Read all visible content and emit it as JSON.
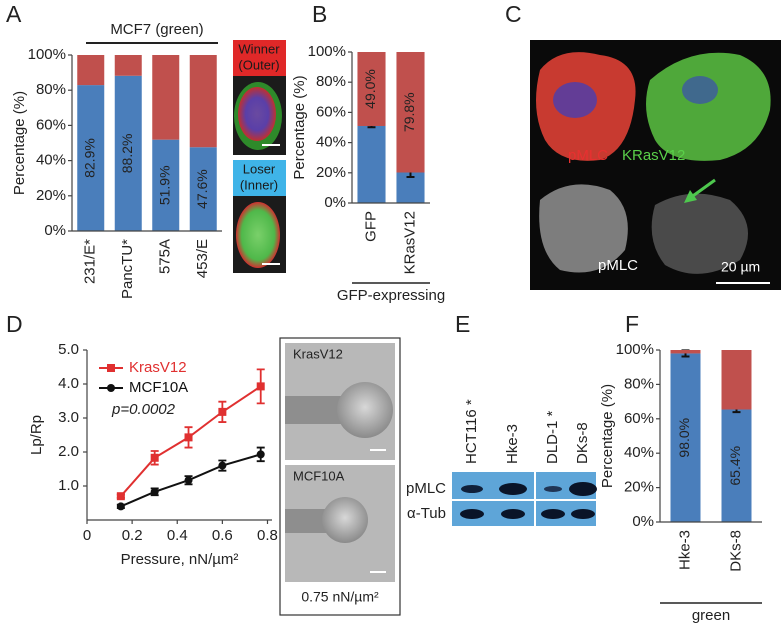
{
  "panel_labels": [
    "A",
    "B",
    "C",
    "D",
    "E",
    "F"
  ],
  "chart_data": [
    {
      "type": "bar",
      "stacked": true,
      "title": "MCF7 (green)",
      "ylabel": "Percentage (%)",
      "categories": [
        "231/E*",
        "PancTU*",
        "575A",
        "453/E"
      ],
      "series": [
        {
          "color": "#4a7ebb",
          "values": [
            82.9,
            88.2,
            51.9,
            47.6
          ],
          "value_labels": [
            "82.9%",
            "88.2%",
            "51.9%",
            "47.6%"
          ]
        },
        {
          "color": "#c0504d",
          "values": [
            17.1,
            11.8,
            48.1,
            52.4
          ]
        }
      ],
      "ylim": [
        0,
        100
      ],
      "yticks": [
        {
          "value": 0,
          "label": "0%"
        },
        {
          "value": 20,
          "label": "20%"
        },
        {
          "value": 40,
          "label": "40%"
        },
        {
          "value": 60,
          "label": "60%"
        },
        {
          "value": 80,
          "label": "80%"
        },
        {
          "value": 100,
          "label": "100%"
        }
      ]
    },
    {
      "type": "bar",
      "stacked": true,
      "ylabel": "Percentage (%)",
      "xlabel": "GFP-expressing",
      "categories": [
        "GFP",
        "KRasV12"
      ],
      "series": [
        {
          "color": "#4a7ebb",
          "values": [
            51.0,
            20.2
          ],
          "error": [
            0.8,
            3.0
          ]
        },
        {
          "color": "#c0504d",
          "values": [
            49.0,
            79.8
          ],
          "value_labels": [
            "49.0%",
            "79.8%"
          ]
        }
      ],
      "ylim": [
        0,
        100
      ],
      "yticks": [
        {
          "value": 0,
          "label": "0%"
        },
        {
          "value": 20,
          "label": "20%"
        },
        {
          "value": 40,
          "label": "40%"
        },
        {
          "value": 60,
          "label": "60%"
        },
        {
          "value": 80,
          "label": "80%"
        },
        {
          "value": 100,
          "label": "100%"
        }
      ]
    },
    {
      "type": "line",
      "xlabel": "Pressure, nN/µm²",
      "ylabel": "Lp/Rp",
      "annotation": "p=0.0002",
      "legend": "upper left",
      "x": [
        0.15,
        0.3,
        0.45,
        0.6,
        0.77
      ],
      "series": [
        {
          "name": "KrasV12",
          "color": "#e03030",
          "marker": "square",
          "values": [
            0.7,
            1.83,
            2.43,
            3.18,
            3.93
          ],
          "error": [
            0.05,
            0.2,
            0.3,
            0.3,
            0.5
          ]
        },
        {
          "name": "MCF10A",
          "color": "#111111",
          "marker": "circle",
          "values": [
            0.4,
            0.83,
            1.17,
            1.6,
            1.93
          ],
          "error": [
            0.05,
            0.1,
            0.12,
            0.15,
            0.2
          ]
        }
      ],
      "xlim": [
        0,
        0.82
      ],
      "xticks": [
        0,
        0.2,
        0.4,
        0.6,
        0.8
      ],
      "ylim": [
        0,
        5
      ],
      "yticks": [
        {
          "value": 1,
          "label": "1.0"
        },
        {
          "value": 2,
          "label": "2.0"
        },
        {
          "value": 3,
          "label": "3.0"
        },
        {
          "value": 4,
          "label": "4.0"
        },
        {
          "value": 5,
          "label": "5.0"
        }
      ]
    },
    {
      "type": "bar",
      "stacked": true,
      "ylabel": "Percentage (%)",
      "xlabel": "green",
      "categories": [
        "Hke-3",
        "DKs-8"
      ],
      "series": [
        {
          "color": "#4a7ebb",
          "values": [
            98.0,
            65.4
          ],
          "error": [
            1.8,
            1.5
          ],
          "value_labels": [
            "98.0%",
            "65.4%"
          ]
        },
        {
          "color": "#c0504d",
          "values": [
            2.0,
            34.6
          ]
        }
      ],
      "ylim": [
        0,
        100
      ],
      "yticks": [
        {
          "value": 0,
          "label": "0%"
        },
        {
          "value": 20,
          "label": "20%"
        },
        {
          "value": 40,
          "label": "40%"
        },
        {
          "value": 60,
          "label": "60%"
        },
        {
          "value": 80,
          "label": "80%"
        },
        {
          "value": 100,
          "label": "100%"
        }
      ]
    }
  ],
  "images": {
    "A": {
      "top": [
        "Winner",
        "(Outer)"
      ],
      "bottom": [
        "Loser",
        "(Inner)"
      ]
    },
    "C": {
      "labels": [
        "pMLC",
        "KRasV12",
        "pMLC",
        "20 µm"
      ]
    },
    "D": {
      "labels": [
        "KrasV12",
        "MCF10A",
        "0.75 nN/µm²"
      ]
    }
  },
  "blot": {
    "lanes": [
      "HCT116 *",
      "Hke-3",
      "DLD-1 *",
      "DKs-8"
    ],
    "rows": [
      "pMLC",
      "α-Tub"
    ]
  }
}
